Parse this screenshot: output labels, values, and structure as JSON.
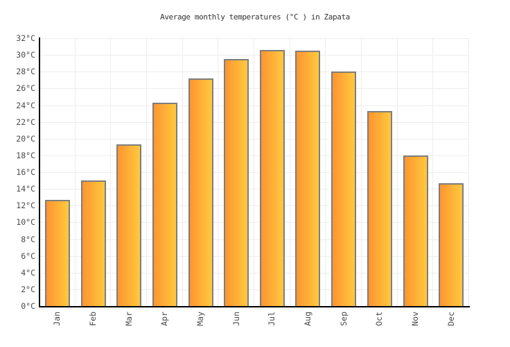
{
  "title": "Average monthly temperatures (°C ) in Zapata",
  "chart_data": {
    "type": "bar",
    "title": "Average monthly temperatures (°C ) in Zapata",
    "categories": [
      "Jan",
      "Feb",
      "Mar",
      "Apr",
      "May",
      "Jun",
      "Jul",
      "Aug",
      "Sep",
      "Oct",
      "Nov",
      "Dec"
    ],
    "values": [
      12.7,
      15.0,
      19.3,
      24.3,
      27.2,
      29.5,
      30.6,
      30.5,
      28.0,
      23.3,
      18.0,
      14.7
    ],
    "unit": "°C",
    "xlabel": "",
    "ylabel": "",
    "ylim": [
      0,
      32
    ],
    "ytick_step": 2,
    "ytick_labels": [
      "0°C",
      "2°C",
      "4°C",
      "6°C",
      "8°C",
      "10°C",
      "12°C",
      "14°C",
      "16°C",
      "18°C",
      "20°C",
      "22°C",
      "24°C",
      "26°C",
      "28°C",
      "30°C",
      "32°C"
    ],
    "grid": true,
    "legend": false,
    "colors": {
      "bar_gradient_left": "#ff9531",
      "bar_gradient_right": "#ffc93e",
      "bar_border": "#7d7d7d",
      "axis": "#000000",
      "gridline": "#ededed",
      "tick_label": "#4a4a4a",
      "title": "#333333"
    }
  }
}
